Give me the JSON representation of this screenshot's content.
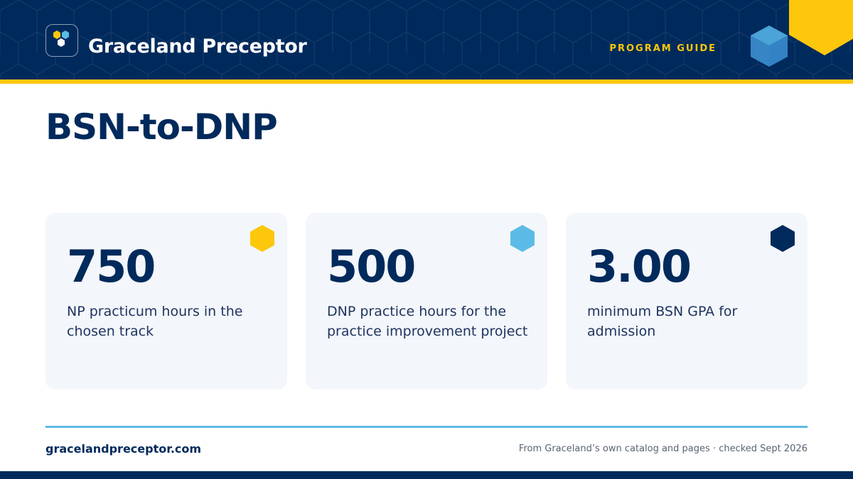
{
  "header": {
    "brand": "Graceland Preceptor",
    "tag": "PROGRAM GUIDE",
    "logo_icon": "hexagon-cluster-icon",
    "cube_icon": "cube-icon",
    "corner_icon": "hexagon-icon"
  },
  "title": "BSN-to-DNP",
  "stats": [
    {
      "value": "750",
      "label": "NP practicum hours in the chosen track",
      "accent": "#fdc70b"
    },
    {
      "value": "500",
      "label": "DNP practice hours for the practice improvement project",
      "accent": "#5cbbe6"
    },
    {
      "value": "3.00",
      "label": "minimum BSN GPA for admission",
      "accent": "#012a5c"
    }
  ],
  "footer": {
    "url": "gracelandpreceptor.com",
    "source": "From Graceland’s own catalog and pages · checked Sept 2026"
  },
  "colors": {
    "navy": "#012a5c",
    "gold": "#fdc70b",
    "sky": "#5cbbe6",
    "card_bg": "#f3f6fa"
  }
}
